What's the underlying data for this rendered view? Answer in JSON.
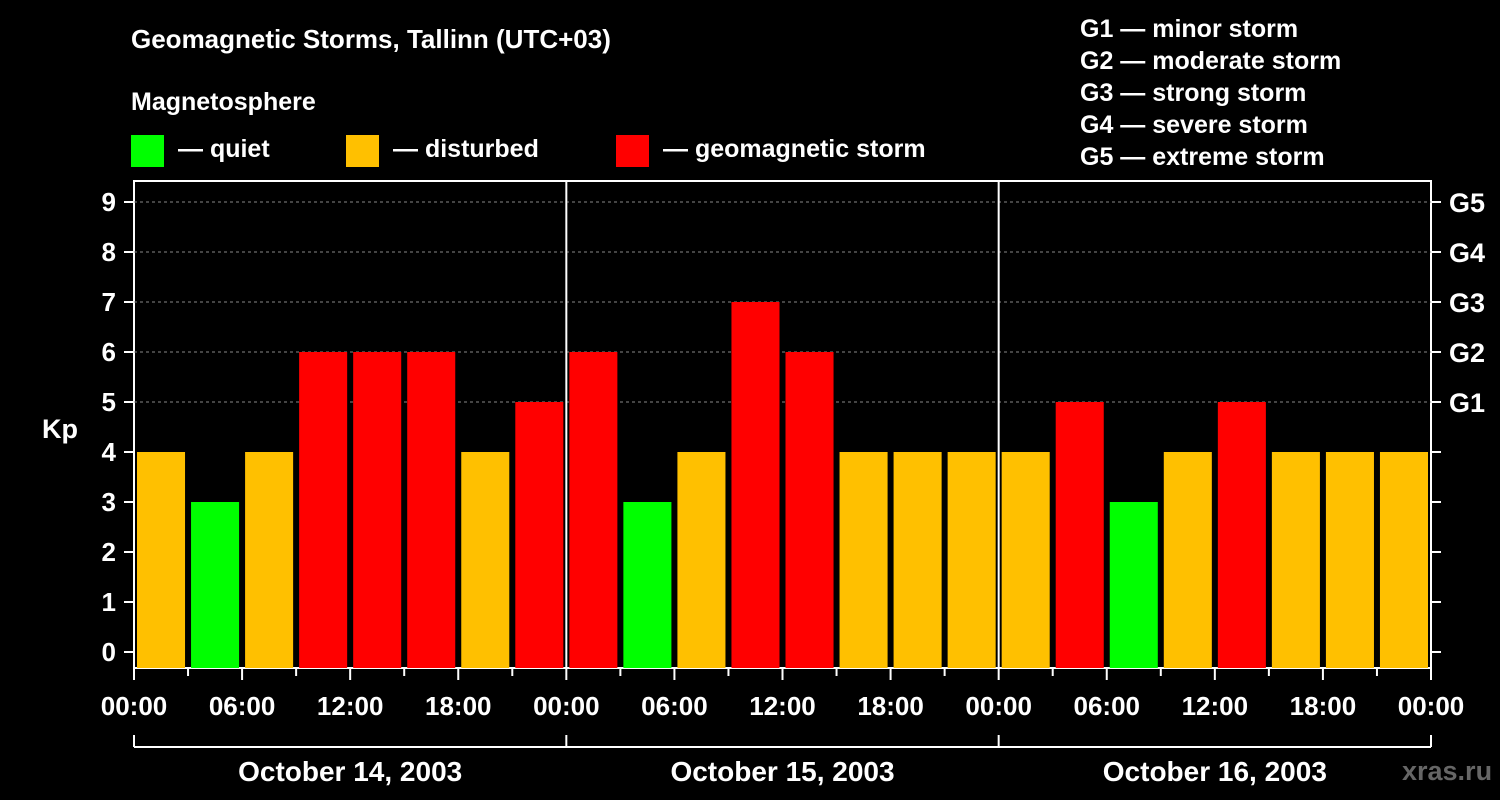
{
  "title": "Geomagnetic Storms, Tallinn (UTC+03)",
  "subtitle": "Magnetosphere",
  "legend": [
    {
      "label": "— quiet",
      "color": "#00ff00"
    },
    {
      "label": "— disturbed",
      "color": "#ffc000"
    },
    {
      "label": "— geomagnetic storm",
      "color": "#ff0000"
    }
  ],
  "storm_scale": [
    "G1 — minor storm",
    "G2 — moderate storm",
    "G3 — strong storm",
    "G4 — severe storm",
    "G5 — extreme storm"
  ],
  "watermark": "xras.ru",
  "chart_data": {
    "type": "bar",
    "title": "Geomagnetic Storms, Tallinn (UTC+03)",
    "ylabel": "Kp",
    "ylim": [
      0,
      9
    ],
    "y_ticks": [
      0,
      1,
      2,
      3,
      4,
      5,
      6,
      7,
      8,
      9
    ],
    "right_axis_labels": [
      {
        "kp": 5,
        "label": "G1"
      },
      {
        "kp": 6,
        "label": "G2"
      },
      {
        "kp": 7,
        "label": "G3"
      },
      {
        "kp": 8,
        "label": "G4"
      },
      {
        "kp": 9,
        "label": "G5"
      }
    ],
    "x_tick_labels": [
      "00:00",
      "06:00",
      "12:00",
      "18:00",
      "00:00",
      "06:00",
      "12:00",
      "18:00",
      "00:00",
      "06:00",
      "12:00",
      "18:00",
      "00:00"
    ],
    "days": [
      "October 14, 2003",
      "October 15, 2003",
      "October 16, 2003"
    ],
    "interval_hours": 3,
    "values": [
      4,
      3,
      4,
      6,
      6,
      6,
      4,
      5,
      6,
      3,
      4,
      7,
      6,
      4,
      4,
      4,
      4,
      5,
      3,
      4,
      5,
      4,
      4,
      4
    ],
    "color_rule": {
      "quiet_max": 3,
      "disturbed": 4,
      "storm_min": 5
    },
    "grid": "dashed horizontal at G levels",
    "legend_position": "top"
  }
}
